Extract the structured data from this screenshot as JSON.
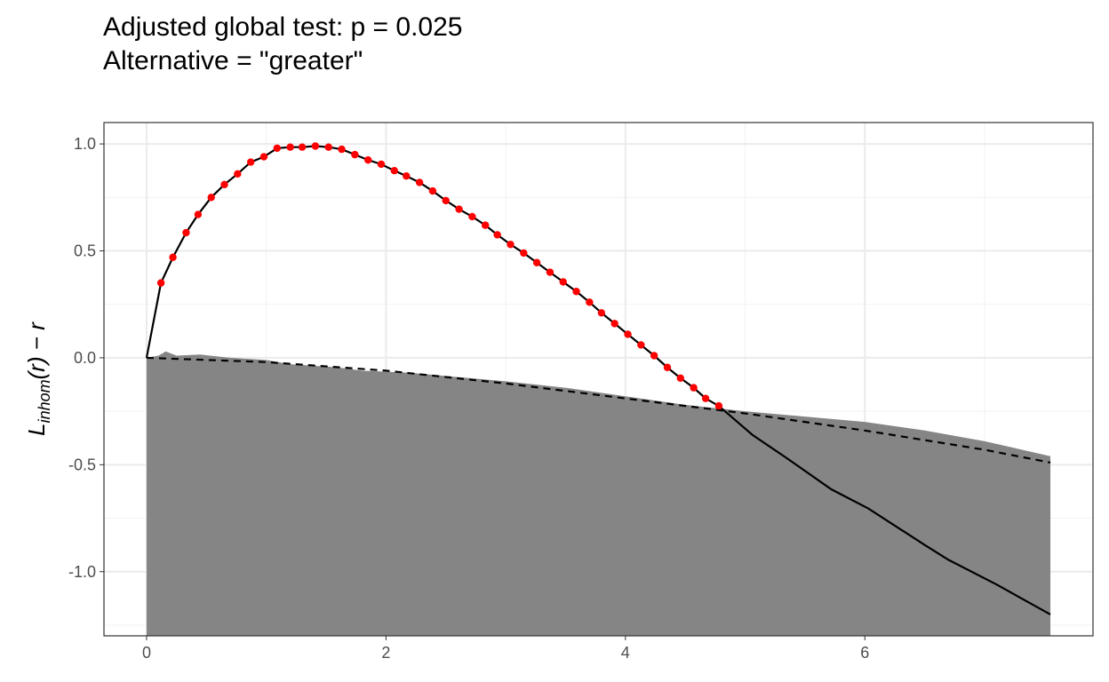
{
  "chart_data": {
    "type": "line",
    "title": "Adjusted global test: p = 0.025",
    "subtitle": "Alternative = \"greater\"",
    "ylabel": {
      "main": "L",
      "subscript": "inhom",
      "rest": "(r) − r"
    },
    "xlim": [
      -0.356,
      7.906
    ],
    "ylim": [
      -1.3,
      1.1
    ],
    "xticks": [
      0,
      2,
      4,
      6
    ],
    "yticks": [
      {
        "value": 1.0,
        "label": "1.0"
      },
      {
        "value": 0.5,
        "label": "0.5"
      },
      {
        "value": 0.0,
        "label": "0.0"
      },
      {
        "value": -0.5,
        "label": "-0.5"
      },
      {
        "value": -1.0,
        "label": "-1.0"
      }
    ],
    "minor_xticks": [
      1,
      3,
      5,
      7
    ],
    "minor_yticks": [
      0.75,
      0.25,
      -0.25,
      -0.75,
      -1.25
    ],
    "grid": true,
    "series": [
      {
        "style": "area",
        "color": "#858585",
        "x": [
          0,
          0.1,
          0.16,
          0.25,
          0.45,
          0.7,
          1,
          1.2,
          1.6,
          1.8,
          2.2,
          2.5,
          3,
          3.5,
          4,
          4.5,
          5,
          5.5,
          6,
          6.5,
          7,
          7.55
        ],
        "values": [
          0,
          0.01,
          0.03,
          0.01,
          0.015,
          0.0,
          -0.01,
          -0.03,
          -0.045,
          -0.06,
          -0.07,
          -0.085,
          -0.11,
          -0.14,
          -0.18,
          -0.22,
          -0.25,
          -0.275,
          -0.3,
          -0.34,
          -0.39,
          -0.46
        ]
      },
      {
        "style": "dashed",
        "color": "#000000",
        "x": [
          0,
          1,
          2,
          3,
          4,
          5,
          6,
          7,
          7.55
        ],
        "values": [
          0,
          -0.02,
          -0.06,
          -0.12,
          -0.19,
          -0.26,
          -0.34,
          -0.43,
          -0.49
        ]
      },
      {
        "style": "solid",
        "color": "#000000",
        "x": [
          0,
          0.12,
          0.22,
          0.33,
          0.43,
          0.54,
          0.65,
          0.76,
          0.87,
          0.98,
          1.09,
          1.2,
          1.3,
          1.41,
          1.52,
          1.63,
          1.74,
          1.85,
          1.96,
          2.07,
          2.17,
          2.28,
          2.39,
          2.5,
          2.61,
          2.72,
          2.83,
          2.93,
          3.04,
          3.15,
          3.26,
          3.37,
          3.48,
          3.59,
          3.7,
          3.8,
          3.91,
          4.02,
          4.13,
          4.24,
          4.35,
          4.46,
          4.57,
          4.67,
          4.78,
          5.06,
          5.35,
          5.72,
          6.03,
          6.5,
          6.7,
          7.1,
          7.55
        ],
        "values": [
          0,
          0.35,
          0.47,
          0.585,
          0.67,
          0.75,
          0.81,
          0.86,
          0.915,
          0.94,
          0.98,
          0.985,
          0.985,
          0.99,
          0.985,
          0.975,
          0.95,
          0.925,
          0.905,
          0.875,
          0.85,
          0.82,
          0.78,
          0.735,
          0.695,
          0.66,
          0.62,
          0.575,
          0.53,
          0.49,
          0.445,
          0.4,
          0.355,
          0.31,
          0.26,
          0.21,
          0.16,
          0.11,
          0.06,
          0.01,
          -0.045,
          -0.095,
          -0.14,
          -0.19,
          -0.225,
          -0.36,
          -0.47,
          -0.615,
          -0.705,
          -0.875,
          -0.945,
          -1.06,
          -1.2
        ]
      },
      {
        "style": "points",
        "color": "#ff0000",
        "x": [
          0.12,
          0.22,
          0.33,
          0.43,
          0.54,
          0.65,
          0.76,
          0.87,
          0.98,
          1.09,
          1.2,
          1.3,
          1.41,
          1.52,
          1.63,
          1.74,
          1.85,
          1.96,
          2.07,
          2.17,
          2.28,
          2.39,
          2.5,
          2.61,
          2.72,
          2.83,
          2.93,
          3.04,
          3.15,
          3.26,
          3.37,
          3.48,
          3.59,
          3.7,
          3.8,
          3.91,
          4.02,
          4.13,
          4.24,
          4.35,
          4.46,
          4.57,
          4.67,
          4.78
        ],
        "values": [
          0.35,
          0.47,
          0.585,
          0.67,
          0.75,
          0.81,
          0.86,
          0.915,
          0.94,
          0.98,
          0.985,
          0.985,
          0.99,
          0.985,
          0.975,
          0.95,
          0.925,
          0.905,
          0.875,
          0.85,
          0.82,
          0.78,
          0.735,
          0.695,
          0.66,
          0.62,
          0.575,
          0.53,
          0.49,
          0.445,
          0.4,
          0.355,
          0.31,
          0.26,
          0.21,
          0.16,
          0.11,
          0.06,
          0.01,
          -0.045,
          -0.095,
          -0.14,
          -0.19,
          -0.225
        ]
      }
    ]
  }
}
